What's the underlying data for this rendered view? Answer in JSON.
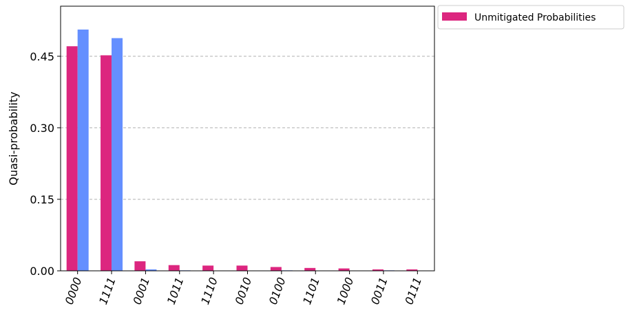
{
  "chart_data": {
    "type": "bar",
    "title": "",
    "xlabel": "",
    "ylabel": "Quasi-probability",
    "categories": [
      "0000",
      "1111",
      "0001",
      "1011",
      "1110",
      "0010",
      "0100",
      "1101",
      "1000",
      "0011",
      "0111"
    ],
    "series": [
      {
        "name": "Unmitigated Probabilities",
        "color": "#dc267f",
        "values": [
          0.471,
          0.452,
          0.02,
          0.012,
          0.011,
          0.011,
          0.008,
          0.006,
          0.005,
          0.003,
          0.003
        ]
      },
      {
        "color": "#648fff",
        "values": [
          0.506,
          0.488,
          0.003,
          0.001,
          0.0,
          0.0,
          0.001,
          0.0,
          0.0,
          0.001,
          0.0
        ]
      }
    ],
    "yticks": [
      0.0,
      0.15,
      0.3,
      0.45
    ],
    "ytick_labels": [
      "0.00",
      "0.15",
      "0.30",
      "0.45"
    ],
    "ylim": [
      0,
      0.555
    ],
    "grid": "horizontal-dashed",
    "legend_position": "outside-top-right",
    "xtick_rotation": -70
  }
}
